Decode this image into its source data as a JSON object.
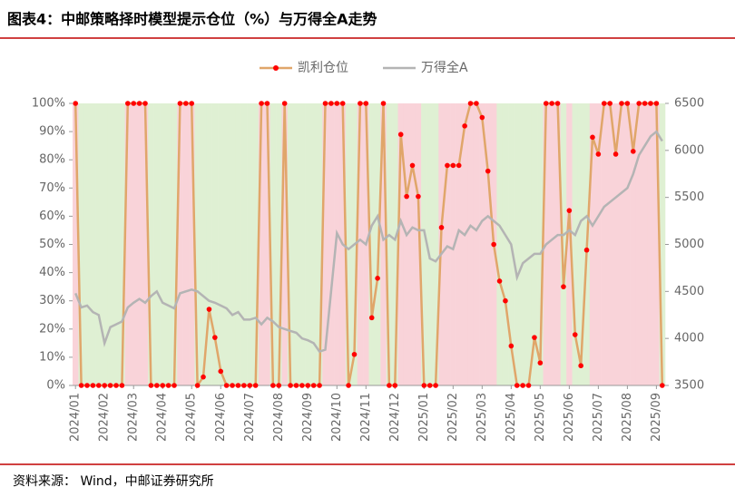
{
  "chart_data": {
    "type": "line",
    "title": "图表4：中邮策略择时模型提示仓位（%）与万得全A走势",
    "source": "资料来源： Wind，中邮证券研究所",
    "categories": [
      "2024/01",
      null,
      null,
      null,
      null,
      "2024/02",
      null,
      null,
      null,
      null,
      "2024/03",
      null,
      null,
      null,
      null,
      "2024/04",
      null,
      null,
      null,
      null,
      "2024/05",
      null,
      null,
      null,
      null,
      "2024/06",
      null,
      null,
      null,
      null,
      "2024/07",
      null,
      null,
      null,
      null,
      "2024/08",
      null,
      null,
      null,
      null,
      "2024/09",
      null,
      null,
      null,
      null,
      "2024/10",
      null,
      null,
      null,
      null,
      "2024/11",
      null,
      null,
      null,
      null,
      "2024/12",
      null,
      null,
      null,
      null,
      "2025/01",
      null,
      null,
      null,
      null,
      "2025/02",
      null,
      null,
      null,
      null,
      "2025/03",
      null,
      null,
      null,
      null,
      "2025/04",
      null,
      null,
      null,
      null,
      "2025/05",
      null,
      null,
      null,
      null,
      "2025/06",
      null,
      null,
      null,
      null,
      "2025/07",
      null,
      null,
      null,
      null,
      "2025/08",
      null,
      null,
      null,
      null,
      "2025/09",
      null
    ],
    "series": [
      {
        "name": "凯利仓位",
        "color": "#e0a66a",
        "marker_color": "#ff0000",
        "values": [
          100,
          0,
          0,
          0,
          0,
          0,
          0,
          0,
          0,
          100,
          100,
          100,
          100,
          0,
          0,
          0,
          0,
          0,
          100,
          100,
          100,
          0,
          3,
          27,
          17,
          5,
          0,
          0,
          0,
          0,
          0,
          0,
          100,
          100,
          0,
          0,
          100,
          0,
          0,
          0,
          0,
          0,
          0,
          100,
          100,
          100,
          100,
          0,
          11,
          100,
          100,
          24,
          38,
          100,
          0,
          0,
          89,
          67,
          78,
          67,
          0,
          0,
          0,
          56,
          78,
          78,
          78,
          92,
          100,
          100,
          95,
          76,
          50,
          37,
          30,
          14,
          0,
          0,
          0,
          17,
          8,
          100,
          100,
          100,
          35,
          62,
          18,
          7,
          48,
          88,
          82,
          100,
          100,
          82,
          100,
          100,
          83,
          100,
          100,
          100,
          100,
          0
        ]
      },
      {
        "name": "万得全A",
        "color": "#b4b4b4",
        "axis": "y2",
        "values": [
          4480,
          4330,
          4350,
          4280,
          4250,
          3950,
          4120,
          4150,
          4180,
          4330,
          4380,
          4420,
          4380,
          4450,
          4500,
          4380,
          4350,
          4320,
          4480,
          4500,
          4520,
          4500,
          4450,
          4400,
          4380,
          4350,
          4320,
          4250,
          4280,
          4200,
          4200,
          4220,
          4150,
          4220,
          4180,
          4120,
          4100,
          4080,
          4060,
          4000,
          3980,
          3950,
          3860,
          3880,
          4500,
          5120,
          5000,
          4950,
          5000,
          5050,
          5000,
          5200,
          5300,
          5050,
          5100,
          5050,
          5250,
          5100,
          5180,
          5150,
          5150,
          4850,
          4820,
          4900,
          4980,
          4950,
          5150,
          5100,
          5200,
          5150,
          5250,
          5300,
          5250,
          5200,
          5100,
          5000,
          4650,
          4800,
          4850,
          4900,
          4900,
          5000,
          5050,
          5100,
          5100,
          5150,
          5100,
          5250,
          5300,
          5200,
          5300,
          5400,
          5450,
          5500,
          5550,
          5600,
          5750,
          5950,
          6050,
          6150,
          6200,
          6100
        ]
      }
    ],
    "ylim": [
      0,
      100
    ],
    "yticks": [
      {
        "value": 0,
        "label": "0%"
      },
      {
        "value": 10,
        "label": "10%"
      },
      {
        "value": 20,
        "label": "20%"
      },
      {
        "value": 30,
        "label": "30%"
      },
      {
        "value": 40,
        "label": "40%"
      },
      {
        "value": 50,
        "label": "50%"
      },
      {
        "value": 60,
        "label": "60%"
      },
      {
        "value": 70,
        "label": "70%"
      },
      {
        "value": 80,
        "label": "80%"
      },
      {
        "value": 90,
        "label": "90%"
      },
      {
        "value": 100,
        "label": "100%"
      }
    ],
    "y2lim": [
      3500,
      6500
    ],
    "y2ticks": [
      3500,
      4000,
      4500,
      5000,
      5500,
      6000,
      6500
    ],
    "shading_colors": [
      "#f9d3d9",
      "#dff0d3"
    ]
  }
}
